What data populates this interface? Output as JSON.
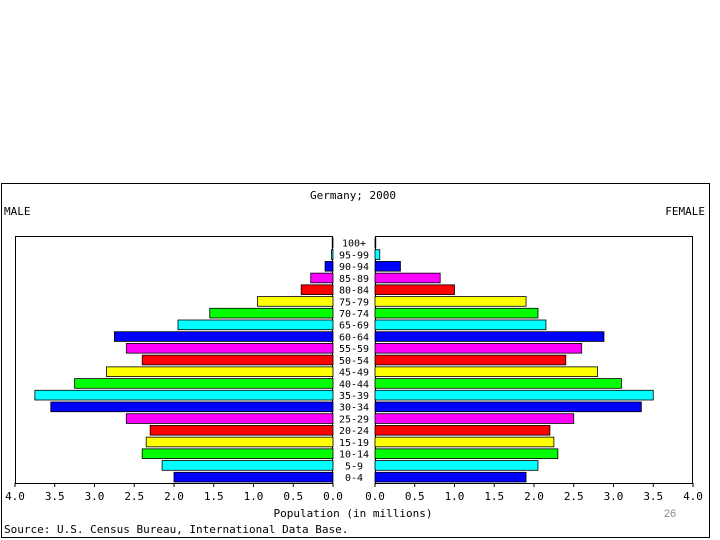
{
  "slide": {
    "number": "26"
  },
  "chart_data": {
    "type": "bar",
    "title": "Germany; 2000",
    "left_label": "MALE",
    "right_label": "FEMALE",
    "xlabel": "Population (in millions)",
    "source": "Source: U.S. Census Bureau, International Data Base.",
    "xlim": [
      0,
      4.0
    ],
    "ticks": [
      "0.0",
      "0.5",
      "1.0",
      "1.5",
      "2.0",
      "2.5",
      "3.0",
      "3.5",
      "4.0"
    ],
    "categories": [
      "0-4",
      "5-9",
      "10-14",
      "15-19",
      "20-24",
      "25-29",
      "30-34",
      "35-39",
      "40-44",
      "45-49",
      "50-54",
      "55-59",
      "60-64",
      "65-69",
      "70-74",
      "75-79",
      "80-84",
      "85-89",
      "90-94",
      "95-99",
      "100+"
    ],
    "series": [
      {
        "name": "MALE",
        "values": [
          2.0,
          2.15,
          2.4,
          2.35,
          2.3,
          2.6,
          3.55,
          3.75,
          3.25,
          2.85,
          2.4,
          2.6,
          2.75,
          1.95,
          1.55,
          0.95,
          0.4,
          0.28,
          0.1,
          0.02,
          0.01
        ]
      },
      {
        "name": "FEMALE",
        "values": [
          1.9,
          2.05,
          2.3,
          2.25,
          2.2,
          2.5,
          3.35,
          3.5,
          3.1,
          2.8,
          2.4,
          2.6,
          2.88,
          2.15,
          2.05,
          1.9,
          1.0,
          0.82,
          0.32,
          0.06,
          0.01
        ]
      }
    ],
    "bar_colors": [
      "#0000ff",
      "#00ffff",
      "#00ff00",
      "#ffff00",
      "#ff0000",
      "#ff00ff"
    ],
    "grid": false
  }
}
